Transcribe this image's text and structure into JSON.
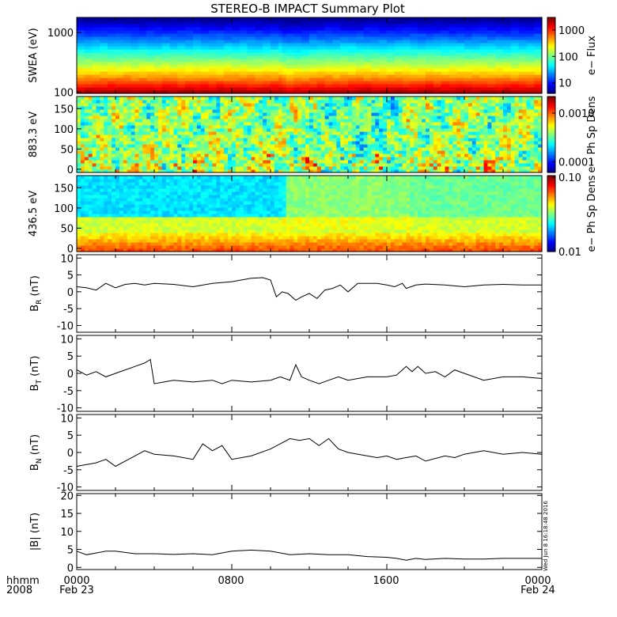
{
  "title": "STEREO-B IMPACT Summary Plot",
  "footer": {
    "left_top": "hhmm",
    "left_bottom": "2008",
    "ticks": [
      {
        "top": "0000",
        "bottom": "Feb 23"
      },
      {
        "top": "0800",
        "bottom": ""
      },
      {
        "top": "1600",
        "bottom": ""
      },
      {
        "top": "0000",
        "bottom": "Feb 24"
      }
    ]
  },
  "timestamp": "Wed Jun  8 16:18:48 2016",
  "chart_data": [
    {
      "type": "heatmap",
      "ylabel": "SWEA (eV)",
      "ylog": true,
      "ylim": [
        95,
        1800
      ],
      "yticks": [
        {
          "v": 100,
          "label": "100"
        },
        {
          "v": 1000,
          "label": "1000"
        }
      ],
      "colorbar": {
        "label": "e− Flux",
        "log": true,
        "range": [
          4,
          3000
        ],
        "ticks": [
          {
            "v": 10,
            "label": "10"
          },
          {
            "v": 100,
            "label": "100"
          },
          {
            "v": 1000,
            "label": "1000"
          }
        ]
      }
    },
    {
      "type": "heatmap",
      "ylabel": "883.3 eV",
      "ylim": [
        -8,
        180
      ],
      "yticks": [
        {
          "v": 0,
          "label": "0"
        },
        {
          "v": 50,
          "label": "50"
        },
        {
          "v": 100,
          "label": "100"
        },
        {
          "v": 150,
          "label": "150"
        }
      ],
      "colorbar": {
        "label": "e− Ph Sp Dens",
        "log": true,
        "range": [
          6e-05,
          0.0022
        ],
        "ticks": [
          {
            "v": 0.0001,
            "label": "0.0001"
          },
          {
            "v": 0.001,
            "label": "0.0010"
          }
        ]
      }
    },
    {
      "type": "heatmap",
      "ylabel": "436.5 eV",
      "ylim": [
        -8,
        180
      ],
      "yticks": [
        {
          "v": 0,
          "label": "0"
        },
        {
          "v": 50,
          "label": "50"
        },
        {
          "v": 100,
          "label": "100"
        },
        {
          "v": 150,
          "label": "150"
        }
      ],
      "colorbar": {
        "label": "e− Ph Sp Dens",
        "log": true,
        "range": [
          0.01,
          0.105
        ],
        "ticks": [
          {
            "v": 0.01,
            "label": "0.01"
          },
          {
            "v": 0.1,
            "label": "0.10"
          }
        ]
      }
    },
    {
      "type": "line",
      "ylabel_main": "B",
      "ylabel_sub": "R",
      "ylabel_unit": " (nT)",
      "ylim": [
        -12,
        11
      ],
      "yticks": [
        -10,
        -5,
        0,
        5,
        10
      ],
      "x": [
        0,
        0.5,
        1,
        1.5,
        2,
        2.5,
        3,
        3.5,
        4,
        5,
        6,
        7,
        8,
        9,
        9.6,
        10,
        10.3,
        10.6,
        10.9,
        11.3,
        11.6,
        12,
        12.4,
        12.8,
        13.2,
        13.6,
        14,
        14.5,
        15,
        15.5,
        16,
        16.4,
        16.8,
        17,
        17.5,
        18,
        19,
        20,
        21,
        22,
        23,
        24
      ],
      "y": [
        1.5,
        1.2,
        0.5,
        2.5,
        1.2,
        2.2,
        2.5,
        2,
        2.5,
        2.2,
        1.5,
        2.5,
        3,
        4,
        4.2,
        3.5,
        -1.5,
        0,
        -0.5,
        -2.5,
        -1.5,
        -0.5,
        -2,
        0.5,
        1,
        2,
        0,
        2.5,
        2.5,
        2.5,
        2,
        1.5,
        2.5,
        1,
        2,
        2.3,
        2,
        1.5,
        2,
        2.2,
        2,
        2
      ],
      "series": [
        {
          "color": "#000000"
        }
      ]
    },
    {
      "type": "line",
      "ylabel_main": "B",
      "ylabel_sub": "T",
      "ylabel_unit": " (nT)",
      "ylim": [
        -11,
        11
      ],
      "yticks": [
        -10,
        -5,
        0,
        5,
        10
      ],
      "x": [
        0,
        0.5,
        1,
        1.5,
        2,
        2.5,
        3,
        3.5,
        3.8,
        4,
        4.5,
        5,
        6,
        7,
        7.5,
        8,
        9,
        10,
        10.5,
        11,
        11.3,
        11.6,
        12,
        12.5,
        13,
        13.5,
        14,
        15,
        16,
        16.5,
        17,
        17.3,
        17.6,
        18,
        18.5,
        19,
        19.5,
        20,
        21,
        22,
        23,
        24
      ],
      "y": [
        1,
        -0.5,
        0.5,
        -1,
        0,
        1,
        2,
        3,
        4,
        -3,
        -2.5,
        -2,
        -2.5,
        -2,
        -3,
        -2,
        -2.5,
        -2,
        -1,
        -2,
        2.5,
        -1,
        -2,
        -3,
        -2,
        -1,
        -2,
        -1,
        -1,
        -0.5,
        2,
        0.5,
        2,
        0,
        0.5,
        -1,
        1,
        0,
        -2,
        -1,
        -1,
        -1.5
      ],
      "series": [
        {
          "color": "#000000"
        }
      ]
    },
    {
      "type": "line",
      "ylabel_main": "B",
      "ylabel_sub": "N",
      "ylabel_unit": " (nT)",
      "ylim": [
        -11,
        11
      ],
      "yticks": [
        -10,
        -5,
        0,
        5,
        10
      ],
      "x": [
        0,
        1,
        1.5,
        2,
        2.5,
        3,
        3.5,
        4,
        5,
        6,
        6.5,
        7,
        7.5,
        8,
        9,
        10,
        10.5,
        11,
        11.5,
        12,
        12.5,
        13,
        13.5,
        14,
        15,
        15.5,
        16,
        16.5,
        17,
        17.5,
        18,
        19,
        19.5,
        20,
        21,
        22,
        23,
        24
      ],
      "y": [
        -4,
        -3,
        -2,
        -4,
        -2.5,
        -1,
        0.5,
        -0.5,
        -1,
        -2,
        2.5,
        0.5,
        2,
        -2,
        -1,
        1,
        2.5,
        4,
        3.5,
        4,
        2,
        4,
        1,
        0,
        -1,
        -1.5,
        -1,
        -2,
        -1.5,
        -1,
        -2.5,
        -1,
        -1.5,
        -0.5,
        0.5,
        -0.5,
        0,
        -0.5
      ],
      "series": [
        {
          "color": "#000000"
        }
      ]
    },
    {
      "type": "line",
      "ylabel_main": "|B|",
      "ylabel_sub": "",
      "ylabel_unit": " (nT)",
      "ylim": [
        -0.6,
        20.5
      ],
      "yticks": [
        0,
        5,
        10,
        15,
        20
      ],
      "x": [
        0,
        0.5,
        1,
        1.5,
        2,
        3,
        4,
        5,
        6,
        7,
        8,
        9,
        10,
        11,
        12,
        13,
        14,
        15,
        16,
        16.5,
        17,
        17.5,
        18,
        19,
        20,
        21,
        22,
        23,
        24
      ],
      "y": [
        4.5,
        3.5,
        4,
        4.5,
        4.5,
        3.8,
        3.8,
        3.6,
        3.8,
        3.5,
        4.5,
        4.8,
        4.5,
        3.5,
        3.8,
        3.5,
        3.5,
        3,
        2.8,
        2.5,
        2,
        2.5,
        2.2,
        2.5,
        2.3,
        2.3,
        2.5,
        2.5,
        2.5
      ],
      "series": [
        {
          "color": "#000000"
        }
      ]
    }
  ]
}
